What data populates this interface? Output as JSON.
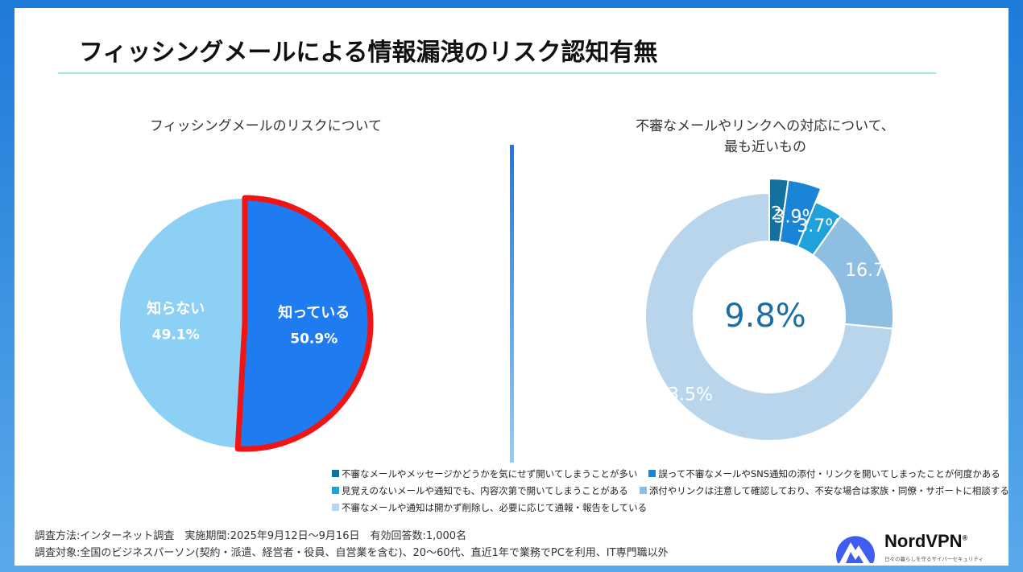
{
  "title": "フィッシングメールによる情報漏洩のリスク認知有無",
  "colors": {
    "accent_rule": "#9ee8d6",
    "pie_know": "#1f7cf0",
    "pie_dont_know": "#8cd0f6",
    "highlight_border": "#f01414",
    "donut_center_text": "#1a6fa8"
  },
  "chart_data": [
    {
      "type": "pie",
      "title": "フィッシングメールのリスクについて",
      "categories": [
        "知っている",
        "知らない"
      ],
      "values": [
        50.9,
        49.1
      ],
      "unit": "%",
      "highlight": "知っている"
    },
    {
      "type": "pie",
      "variant": "donut",
      "title_lines": [
        "不審なメールやリンクへの対応について、",
        "最も近いもの"
      ],
      "categories": [
        "不審なメールやメッセージかどうかを気にせず開いてしまうことが多い",
        "誤って不審なメールやSNS通知の添付・リンクを開いてしまったことが何度かある",
        "見覚えのないメールや通知でも、内容次第で開いてしまうことがある",
        "添付やリンクは注意して確認しており、不安な場合は家族・同僚・サポートに相談する",
        "不審なメールや通知は開かず削除し、必要に応じて通報・報告をしている"
      ],
      "values": [
        2.2,
        3.9,
        3.7,
        16.7,
        73.5
      ],
      "colors": [
        "#14719e",
        "#1a84d6",
        "#1fa2db",
        "#8ebfe3",
        "#b9d5ec"
      ],
      "unit": "%",
      "center_label": "9.8%",
      "highlighted_indices": [
        0,
        1
      ]
    }
  ],
  "footnotes": [
    "調査方法:インターネット調査　実施期間:2025年9月12日～9月16日　有効回答数:1,000名",
    "調査対象:全国のビジネスパーソン(契約・派遣、経営者・役員、自営業を含む)、20～60代、直近1年で業務でPCを利用、IT専門職以外"
  ],
  "brand": {
    "name": "NordVPN",
    "registered_mark": "®",
    "tagline": "日々の暮らしを守るサイバーセキュリティ"
  }
}
